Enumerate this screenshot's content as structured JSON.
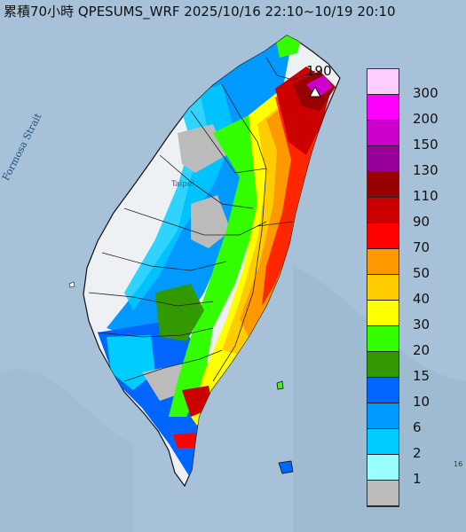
{
  "title": "累積70小時 QPESUMS_WRF 2025/10/16 22:10~10/19 20:10",
  "strait_label": "Formosa Strait",
  "city_label": "Taipei",
  "max_value_label": "190",
  "corner_label": "16",
  "legend": {
    "labels": [
      "300",
      "200",
      "150",
      "130",
      "110",
      "90",
      "70",
      "50",
      "40",
      "30",
      "20",
      "15",
      "10",
      "6",
      "2",
      "1"
    ],
    "colors": [
      "#ffccff",
      "#ff00ff",
      "#cc00cc",
      "#990099",
      "#990000",
      "#cc0000",
      "#ff0000",
      "#ff9900",
      "#ffcc00",
      "#ffff00",
      "#33ff00",
      "#339900",
      "#0066ff",
      "#0099ff",
      "#00ccff",
      "#99ffff",
      "#bbbbbb"
    ]
  },
  "map": {
    "sea_color": "#a7c2d8",
    "land_color": "#eef1f3"
  }
}
